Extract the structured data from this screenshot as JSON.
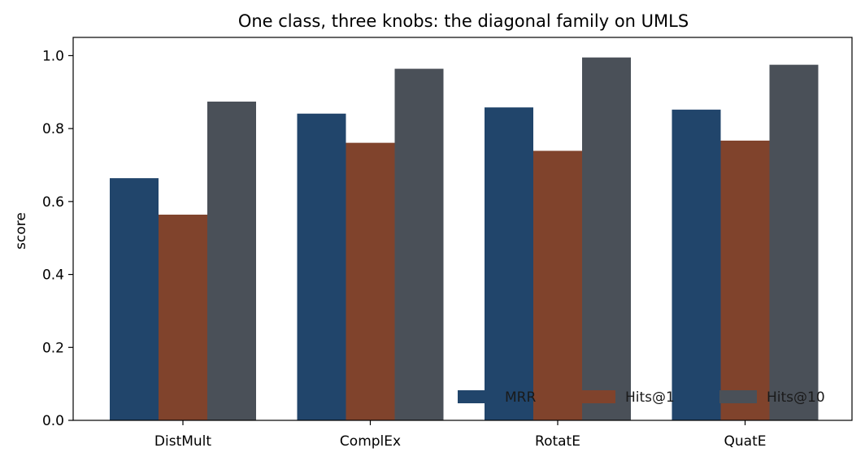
{
  "chart_data": {
    "type": "bar",
    "title": "One class, three knobs: the diagonal family on UMLS",
    "xlabel": "",
    "ylabel": "score",
    "categories": [
      "DistMult",
      "ComplEx",
      "RotatE",
      "QuatE"
    ],
    "series": [
      {
        "name": "MRR",
        "color": "#21456b",
        "values": [
          0.664,
          0.841,
          0.858,
          0.852
        ]
      },
      {
        "name": "Hits@1",
        "color": "#80432c",
        "values": [
          0.564,
          0.761,
          0.739,
          0.767
        ]
      },
      {
        "name": "Hits@10",
        "color": "#4a5058",
        "values": [
          0.874,
          0.964,
          0.995,
          0.975
        ]
      }
    ],
    "ylim": [
      0,
      1.05
    ],
    "yticks": [
      "0.0",
      "0.2",
      "0.4",
      "0.6",
      "0.8",
      "1.0"
    ],
    "grid": false,
    "legend": {
      "placement": "lower-right",
      "columns": 3
    }
  }
}
